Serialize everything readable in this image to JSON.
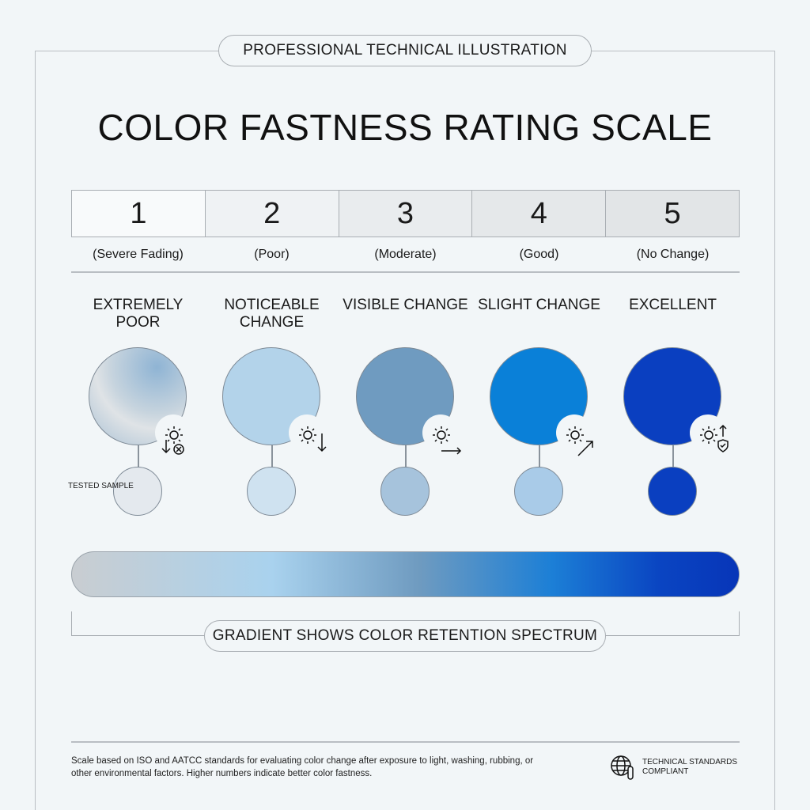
{
  "header": {
    "badge": "PROFESSIONAL TECHNICAL ILLUSTRATION",
    "title": "COLOR FASTNESS RATING SCALE"
  },
  "ratings": [
    {
      "number": "1",
      "label": "(Severe Fading)",
      "quality": "EXTREMELY POOR",
      "color": "#b8c6d2",
      "sample": "#e4e9ee",
      "icon": "sun-down-x-icon"
    },
    {
      "number": "2",
      "label": "(Poor)",
      "quality": "NOTICEABLE CHANGE",
      "color": "#b3d3ea",
      "sample": "#cfe2f0",
      "icon": "sun-down-icon"
    },
    {
      "number": "3",
      "label": "(Moderate)",
      "quality": "VISIBLE CHANGE",
      "color": "#6f9bc0",
      "sample": "#a6c3dc",
      "icon": "sun-right-icon"
    },
    {
      "number": "4",
      "label": "(Good)",
      "quality": "SLIGHT CHANGE",
      "color": "#0a80d8",
      "sample": "#a9cbe8",
      "icon": "sun-up-right-icon"
    },
    {
      "number": "5",
      "label": "(No Change)",
      "quality": "EXCELLENT",
      "color": "#0a3fc0",
      "sample": "#0a3fc0",
      "icon": "sun-up-shield-icon"
    }
  ],
  "tested_sample": "TESTED SAMPLE",
  "gradient_label": "GRADIENT SHOWS COLOR RETENTION SPECTRUM",
  "footer": {
    "note": "Scale based on ISO and AATCC standards for evaluating color change after exposure to light, washing, rubbing, or other environmental factors. Higher numbers indicate better color fastness.",
    "cert": "TECHNICAL STANDARDS COMPLIANT"
  }
}
